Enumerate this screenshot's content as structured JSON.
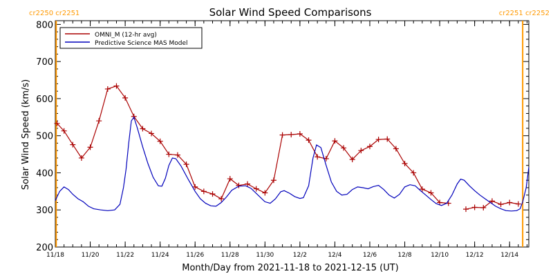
{
  "chart_data": {
    "type": "line",
    "title": "Solar Wind Speed Comparisons",
    "xlabel": "Month/Day from 2021-11-18 to 2021-12-15 (UT)",
    "ylabel": "Solar Wind Speed (km/s)",
    "xlim": [
      0,
      27.1
    ],
    "ylim": [
      200,
      810
    ],
    "yticks": [
      200,
      300,
      400,
      500,
      600,
      700,
      800
    ],
    "x_ticks": [
      {
        "day": 0,
        "label": "11/18"
      },
      {
        "day": 2,
        "label": "11/20"
      },
      {
        "day": 4,
        "label": "11/22"
      },
      {
        "day": 6,
        "label": "11/24"
      },
      {
        "day": 8,
        "label": "11/26"
      },
      {
        "day": 10,
        "label": "11/28"
      },
      {
        "day": 12,
        "label": "11/30"
      },
      {
        "day": 14,
        "label": "12/2"
      },
      {
        "day": 16,
        "label": "12/4"
      },
      {
        "day": 18,
        "label": "12/6"
      },
      {
        "day": 20,
        "label": "12/8"
      },
      {
        "day": 22,
        "label": "12/10"
      },
      {
        "day": 24,
        "label": "12/12"
      },
      {
        "day": 26,
        "label": "12/14"
      }
    ],
    "minor_tick_step_days": 0.5,
    "grid": false,
    "legend_position": "top-left",
    "rotation_markers": [
      {
        "day": 0.05,
        "label": "cr2250 cr2251",
        "color": "#ff9900",
        "label_align": "left"
      },
      {
        "day": 26.75,
        "label": "cr2251 cr2252",
        "color": "#ff9900",
        "label_align": "right"
      }
    ],
    "series": [
      {
        "name": "OMNI_M (12-hr avg)",
        "color": "#aa0000",
        "marker": "plus",
        "segments": [
          [
            [
              0.1,
              533
            ],
            [
              0.5,
              513
            ],
            [
              1,
              476
            ],
            [
              1.5,
              440
            ],
            [
              2,
              469
            ],
            [
              2.5,
              540
            ],
            [
              3,
              626
            ],
            [
              3.5,
              634
            ],
            [
              4,
              602
            ],
            [
              4.5,
              552
            ],
            [
              5,
              519
            ],
            [
              5.5,
              506
            ],
            [
              6,
              485
            ],
            [
              6.5,
              450
            ],
            [
              7,
              448
            ],
            [
              7.5,
              423
            ],
            [
              8,
              362
            ],
            [
              8.5,
              350
            ],
            [
              9,
              343
            ],
            [
              9.5,
              330
            ],
            [
              10,
              384
            ],
            [
              10.5,
              366
            ],
            [
              11,
              370
            ],
            [
              11.5,
              357
            ],
            [
              12,
              346
            ],
            [
              12.5,
              380
            ],
            [
              13,
              502
            ],
            [
              13.5,
              503
            ],
            [
              14,
              505
            ],
            [
              14.5,
              488
            ],
            [
              15,
              443
            ],
            [
              15.5,
              438
            ],
            [
              16,
              486
            ],
            [
              16.5,
              467
            ],
            [
              17,
              436
            ],
            [
              17.5,
              460
            ],
            [
              18,
              471
            ],
            [
              18.5,
              490
            ],
            [
              19,
              491
            ],
            [
              19.5,
              465
            ],
            [
              20,
              425
            ],
            [
              20.5,
              400
            ],
            [
              21,
              356
            ],
            [
              21.5,
              346
            ],
            [
              22,
              320
            ],
            [
              22.5,
              318
            ]
          ],
          [
            [
              23.5,
              302
            ],
            [
              24,
              307
            ],
            [
              24.5,
              306
            ],
            [
              25,
              324
            ],
            [
              25.5,
              315
            ],
            [
              26,
              320
            ],
            [
              26.5,
              316
            ]
          ]
        ]
      },
      {
        "name": "Predictive Science MAS Model",
        "color": "#0000bb",
        "marker": "none",
        "segments": [
          [
            [
              0,
              325
            ],
            [
              0.25,
              350
            ],
            [
              0.5,
              362
            ],
            [
              0.75,
              355
            ],
            [
              1,
              342
            ],
            [
              1.3,
              330
            ],
            [
              1.6,
              322
            ],
            [
              1.9,
              310
            ],
            [
              2.2,
              303
            ],
            [
              2.6,
              300
            ],
            [
              3,
              298
            ],
            [
              3.4,
              300
            ],
            [
              3.7,
              315
            ],
            [
              3.9,
              360
            ],
            [
              4.05,
              410
            ],
            [
              4.2,
              480
            ],
            [
              4.35,
              540
            ],
            [
              4.5,
              550
            ],
            [
              4.7,
              520
            ],
            [
              5,
              470
            ],
            [
              5.3,
              425
            ],
            [
              5.6,
              388
            ],
            [
              5.9,
              365
            ],
            [
              6.1,
              364
            ],
            [
              6.3,
              385
            ],
            [
              6.5,
              420
            ],
            [
              6.7,
              440
            ],
            [
              6.9,
              438
            ],
            [
              7.2,
              418
            ],
            [
              7.6,
              383
            ],
            [
              8,
              350
            ],
            [
              8.3,
              330
            ],
            [
              8.6,
              318
            ],
            [
              8.9,
              311
            ],
            [
              9.2,
              310
            ],
            [
              9.5,
              320
            ],
            [
              9.8,
              335
            ],
            [
              10.1,
              353
            ],
            [
              10.5,
              364
            ],
            [
              10.9,
              365
            ],
            [
              11.2,
              358
            ],
            [
              11.6,
              340
            ],
            [
              12,
              322
            ],
            [
              12.3,
              318
            ],
            [
              12.6,
              330
            ],
            [
              12.9,
              349
            ],
            [
              13.1,
              352
            ],
            [
              13.4,
              345
            ],
            [
              13.7,
              336
            ],
            [
              14,
              331
            ],
            [
              14.2,
              333
            ],
            [
              14.5,
              365
            ],
            [
              14.75,
              440
            ],
            [
              14.95,
              475
            ],
            [
              15.2,
              468
            ],
            [
              15.5,
              420
            ],
            [
              15.8,
              375
            ],
            [
              16.1,
              350
            ],
            [
              16.4,
              340
            ],
            [
              16.7,
              342
            ],
            [
              17,
              355
            ],
            [
              17.3,
              362
            ],
            [
              17.6,
              360
            ],
            [
              17.9,
              357
            ],
            [
              18.2,
              363
            ],
            [
              18.5,
              366
            ],
            [
              18.8,
              355
            ],
            [
              19.1,
              340
            ],
            [
              19.4,
              332
            ],
            [
              19.7,
              342
            ],
            [
              20,
              362
            ],
            [
              20.3,
              368
            ],
            [
              20.6,
              365
            ],
            [
              20.9,
              352
            ],
            [
              21.2,
              340
            ],
            [
              21.5,
              328
            ],
            [
              21.8,
              317
            ],
            [
              22.1,
              312
            ],
            [
              22.4,
              318
            ],
            [
              22.7,
              340
            ],
            [
              23,
              370
            ],
            [
              23.2,
              383
            ],
            [
              23.4,
              380
            ],
            [
              23.7,
              365
            ],
            [
              24,
              352
            ],
            [
              24.3,
              340
            ],
            [
              24.6,
              330
            ],
            [
              24.9,
              320
            ],
            [
              25.2,
              310
            ],
            [
              25.5,
              303
            ],
            [
              25.8,
              298
            ],
            [
              26.1,
              297
            ],
            [
              26.4,
              298
            ],
            [
              26.6,
              303
            ],
            [
              26.75,
              322
            ],
            [
              26.95,
              360
            ],
            [
              27.1,
              415
            ]
          ]
        ]
      }
    ]
  }
}
